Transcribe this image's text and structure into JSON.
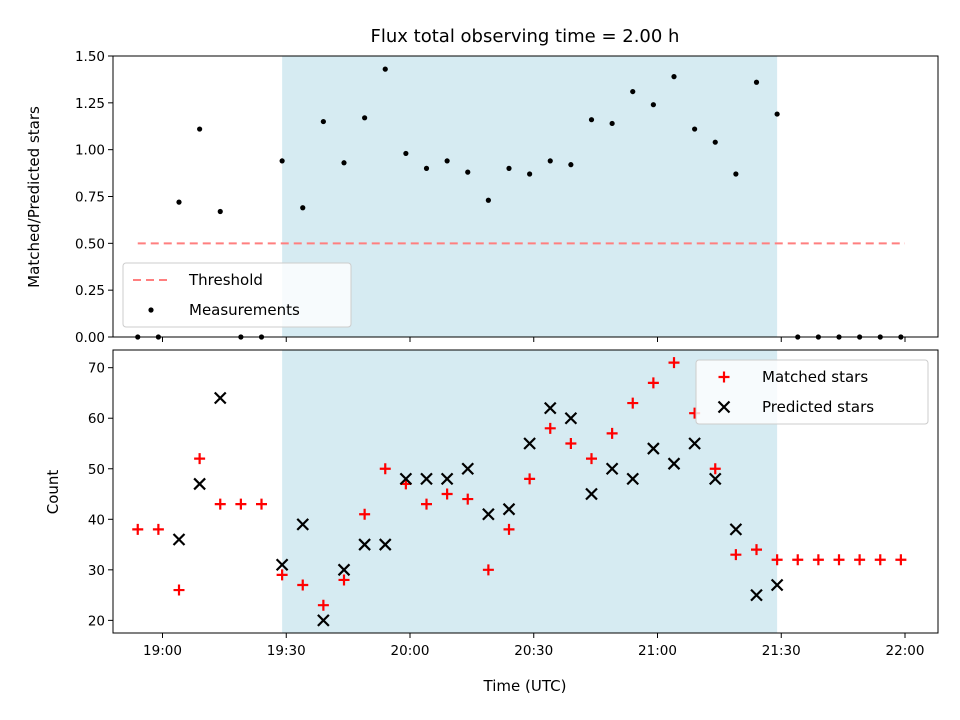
{
  "chart_data": [
    {
      "type": "scatter",
      "title": "Flux total observing time = 2.00 h",
      "xlabel": "",
      "ylabel": "Matched/Predicted stars",
      "ylim": [
        0,
        1.5
      ],
      "yticks": [
        "0.00",
        "0.25",
        "0.50",
        "0.75",
        "1.00",
        "1.25",
        "1.50"
      ],
      "ytick_values": [
        0,
        0.25,
        0.5,
        0.75,
        1.0,
        1.25,
        1.5
      ],
      "xlim": [
        "18:48",
        "22:08"
      ],
      "shaded_region": {
        "start": "19:29",
        "end": "21:29",
        "color": "#add8e6"
      },
      "threshold": {
        "name": "Threshold",
        "value": 0.5,
        "start": "18:54",
        "end": "22:00",
        "color": "#ff7f7f",
        "style": "dashed"
      },
      "series": [
        {
          "name": "Measurements",
          "marker": "dot",
          "color": "#000000",
          "x": [
            "18:54",
            "18:59",
            "19:04",
            "19:09",
            "19:14",
            "19:19",
            "19:24",
            "19:29",
            "19:34",
            "19:39",
            "19:44",
            "19:49",
            "19:54",
            "19:59",
            "20:04",
            "20:09",
            "20:14",
            "20:19",
            "20:24",
            "20:29",
            "20:34",
            "20:39",
            "20:44",
            "20:49",
            "20:54",
            "20:59",
            "21:04",
            "21:09",
            "21:14",
            "21:19",
            "21:24",
            "21:29",
            "21:34",
            "21:39",
            "21:44",
            "21:49",
            "21:54",
            "21:59"
          ],
          "y": [
            0.0,
            0.0,
            0.72,
            1.11,
            0.67,
            0.0,
            0.0,
            0.94,
            0.69,
            1.15,
            0.93,
            1.17,
            1.43,
            0.98,
            0.9,
            0.94,
            0.88,
            0.73,
            0.9,
            0.87,
            0.94,
            0.92,
            1.16,
            1.14,
            1.31,
            1.24,
            1.39,
            1.11,
            1.04,
            0.87,
            1.36,
            1.19,
            0.0,
            0.0,
            0.0,
            0.0,
            0.0,
            0.0
          ]
        }
      ],
      "legend": {
        "placement": "lower-left",
        "entries": [
          "Threshold",
          "Measurements"
        ]
      }
    },
    {
      "type": "scatter",
      "title": "",
      "xlabel": "Time (UTC)",
      "ylabel": "Count",
      "ylim": [
        17.5,
        73.5
      ],
      "yticks": [
        "20",
        "30",
        "40",
        "50",
        "60",
        "70"
      ],
      "ytick_values": [
        20,
        30,
        40,
        50,
        60,
        70
      ],
      "xlim": [
        "18:48",
        "22:08"
      ],
      "xticks": [
        "19:00",
        "19:30",
        "20:00",
        "20:30",
        "21:00",
        "21:30",
        "22:00"
      ],
      "shaded_region": {
        "start": "19:29",
        "end": "21:29",
        "color": "#add8e6"
      },
      "series": [
        {
          "name": "Matched stars",
          "marker": "plus",
          "color": "#ff0000",
          "x": [
            "18:54",
            "18:59",
            "19:04",
            "19:09",
            "19:14",
            "19:19",
            "19:24",
            "19:29",
            "19:34",
            "19:39",
            "19:44",
            "19:49",
            "19:54",
            "19:59",
            "20:04",
            "20:09",
            "20:14",
            "20:19",
            "20:24",
            "20:29",
            "20:34",
            "20:39",
            "20:44",
            "20:49",
            "20:54",
            "20:59",
            "21:04",
            "21:09",
            "21:14",
            "21:19",
            "21:24",
            "21:29",
            "21:34",
            "21:39",
            "21:44",
            "21:49",
            "21:54",
            "21:59"
          ],
          "y": [
            38,
            38,
            26,
            52,
            43,
            43,
            43,
            29,
            27,
            23,
            28,
            41,
            50,
            47,
            43,
            45,
            44,
            30,
            38,
            48,
            58,
            55,
            52,
            57,
            63,
            67,
            71,
            61,
            50,
            33,
            34,
            32,
            32,
            32,
            32,
            32,
            32,
            32
          ]
        },
        {
          "name": "Predicted stars",
          "marker": "x",
          "color": "#000000",
          "x": [
            "19:04",
            "19:09",
            "19:14",
            "19:29",
            "19:34",
            "19:39",
            "19:44",
            "19:49",
            "19:54",
            "19:59",
            "20:04",
            "20:09",
            "20:14",
            "20:19",
            "20:24",
            "20:29",
            "20:34",
            "20:39",
            "20:44",
            "20:49",
            "20:54",
            "20:59",
            "21:04",
            "21:09",
            "21:14",
            "21:19",
            "21:24",
            "21:29"
          ],
          "y": [
            36,
            47,
            64,
            31,
            39,
            20,
            30,
            35,
            35,
            48,
            48,
            48,
            50,
            41,
            42,
            55,
            62,
            60,
            45,
            50,
            48,
            54,
            51,
            55,
            48,
            38,
            25,
            27
          ]
        }
      ],
      "legend": {
        "placement": "upper-right",
        "entries": [
          "Matched stars",
          "Predicted stars"
        ]
      }
    }
  ]
}
